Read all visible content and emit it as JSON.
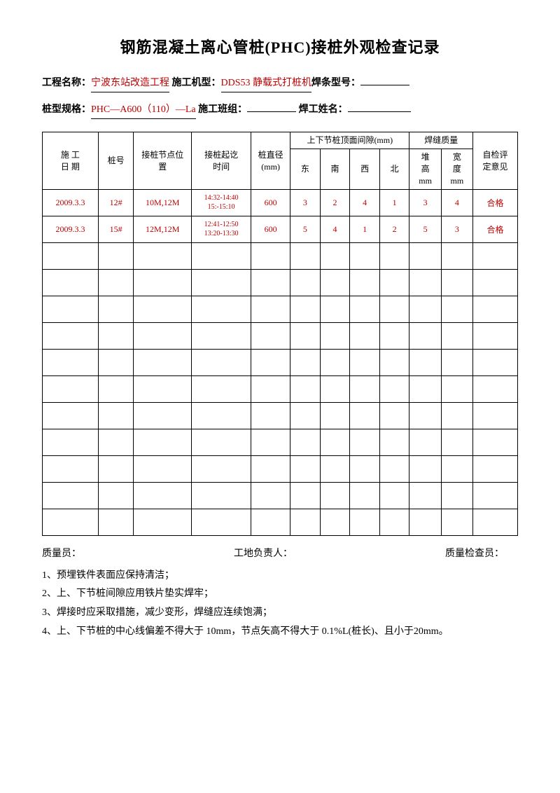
{
  "title": "钢筋混凝土离心管桩(PHC)接桩外观检查记录",
  "info": {
    "project_label": "工程名称：",
    "project_value": "宁波东站改造工程",
    "machine_label": " 施工机型：",
    "machine_value": "DDS53 静载式打桩机",
    "rod_label": "焊条型号：",
    "rod_value": "",
    "spec_label": "桩型规格：",
    "spec_value": "PHC—A600（110）—La",
    "team_label": " 施工班组：",
    "team_value": "",
    "welder_label": " 焊工姓名：",
    "welder_value": ""
  },
  "table": {
    "headers": {
      "date": "施 工\n日 期",
      "pile_no": "桩号",
      "position": "接桩节点位\n置",
      "time": "接桩起讫\n时间",
      "diameter": "桩直径\n(mm)",
      "gap_group": "上下节桩顶面间隙(mm)",
      "gap_east": "东",
      "gap_south": "南",
      "gap_west": "西",
      "gap_north": "北",
      "weld_group": "焊缝质量",
      "weld_height": "堆\n高\nmm",
      "weld_width": "宽\n度\nmm",
      "opinion": "自检评\n定意见"
    },
    "rows": [
      {
        "date": "2009.3.3",
        "pile_no": "12#",
        "position": "10M,12M",
        "time_1": "14:32-14:40",
        "time_2": "15:-15:10",
        "diameter": "600",
        "east": "3",
        "south": "2",
        "west": "4",
        "north": "1",
        "height": "3",
        "width": "4",
        "opinion": "合格"
      },
      {
        "date": "2009.3.3",
        "pile_no": "15#",
        "position": "12M,12M",
        "time_1": "12:41-12:50",
        "time_2": "13:20-13:30",
        "diameter": "600",
        "east": "5",
        "south": "4",
        "west": "1",
        "north": "2",
        "height": "5",
        "width": "3",
        "opinion": "合格"
      }
    ],
    "empty_rows": 11,
    "colors": {
      "data_text": "#c00000",
      "border": "#000000"
    }
  },
  "signatures": {
    "quality": "质量员：",
    "site": "工地负责人：",
    "inspector": "质量检查员："
  },
  "notes": {
    "n1": "1、预埋铁件表面应保持清洁；",
    "n2": "2、上、下节桩间隙应用铁片垫实焊牢；",
    "n3": "3、焊接时应采取措施，减少变形，焊缝应连续饱满；",
    "n4": "4、上、下节桩的中心线偏差不得大于 10mm，节点矢高不得大于 0.1%L(桩长)、且小于20mm。"
  }
}
